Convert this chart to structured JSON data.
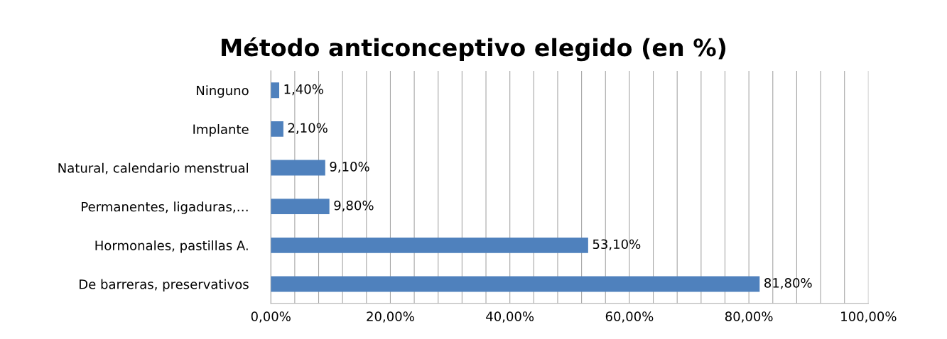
{
  "chart_data": {
    "type": "bar",
    "orientation": "horizontal",
    "title": "Método anticonceptivo elegido (en %)",
    "categories": [
      "Ninguno",
      "Implante",
      "Natural, calendario menstrual",
      "Permanentes, ligaduras,…",
      "Hormonales, pastillas A.",
      "De barreras, preservativos"
    ],
    "values": [
      1.4,
      2.1,
      9.1,
      9.8,
      53.1,
      81.8
    ],
    "value_labels": [
      "1,40%",
      "2,10%",
      "9,10%",
      "9,80%",
      "53,10%",
      "81,80%"
    ],
    "color": "#4f81bd",
    "xlim": [
      0,
      100
    ],
    "xticks": [
      {
        "value": 0,
        "label": "0,00%"
      },
      {
        "value": 4,
        "label": null
      },
      {
        "value": 8,
        "label": null
      },
      {
        "value": 12,
        "label": null
      },
      {
        "value": 16,
        "label": null
      },
      {
        "value": 20,
        "label": "20,00%"
      },
      {
        "value": 24,
        "label": null
      },
      {
        "value": 28,
        "label": null
      },
      {
        "value": 32,
        "label": null
      },
      {
        "value": 36,
        "label": null
      },
      {
        "value": 40,
        "label": "40,00%"
      },
      {
        "value": 44,
        "label": null
      },
      {
        "value": 48,
        "label": null
      },
      {
        "value": 52,
        "label": null
      },
      {
        "value": 56,
        "label": null
      },
      {
        "value": 60,
        "label": "60,00%"
      },
      {
        "value": 64,
        "label": null
      },
      {
        "value": 68,
        "label": null
      },
      {
        "value": 72,
        "label": null
      },
      {
        "value": 76,
        "label": null
      },
      {
        "value": 80,
        "label": "80,00%"
      },
      {
        "value": 84,
        "label": null
      },
      {
        "value": 88,
        "label": null
      },
      {
        "value": 92,
        "label": null
      },
      {
        "value": 96,
        "label": null
      },
      {
        "value": 100,
        "label": "100,00%"
      }
    ],
    "grid": "x"
  }
}
